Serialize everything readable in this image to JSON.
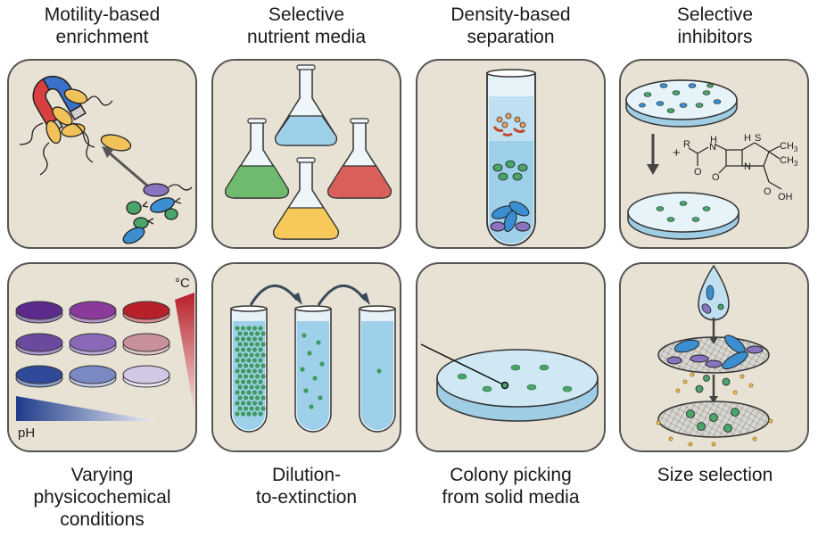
{
  "labels": {
    "motility": "Motility-based enrichment",
    "nutrient": "Selective nutrient media",
    "density": "Density-based separation",
    "inhibitors": "Selective inhibitors",
    "physico": "Varying physicochemical conditions",
    "dilution": "Dilution-to-extinction",
    "colony": "Colony picking from solid media",
    "size": "Size selection"
  },
  "label_lines": {
    "motility": [
      "Motility-based",
      "enrichment"
    ],
    "nutrient": [
      "Selective",
      "nutrient media"
    ],
    "density": [
      "Density-based",
      "separation"
    ],
    "inhibitors": [
      "Selective",
      "inhibitors"
    ],
    "physico": [
      "Varying",
      "physicochemical",
      "conditions"
    ],
    "dilution": [
      "Dilution-",
      "to-extinction"
    ],
    "colony": [
      "Colony picking",
      "from solid media"
    ],
    "size": [
      "Size selection"
    ]
  },
  "annotations": {
    "temperature": "°C",
    "ph": "pH",
    "plus": "+",
    "chem_r": "R",
    "chem_h1": "H",
    "chem_n1": "N",
    "chem_h2": "H",
    "chem_s": "S",
    "chem_ch3_a": "CH",
    "chem_ch3_b": "CH",
    "chem_sub3": "3",
    "chem_o1": "O",
    "chem_n2": "N",
    "chem_o2": "O",
    "chem_oh": "OH",
    "chem_o3": "O"
  },
  "colors": {
    "panel_bg": "#e8e2d5",
    "panel_border": "#555555",
    "cell_green": "#4aa56a",
    "cell_blue": "#3b8fd0",
    "cell_purple": "#7a5aa8",
    "cell_yellow": "#f2c25a",
    "media_blue": "#9fd0ea",
    "media_green": "#6fba6f",
    "media_yellow": "#f6c95a",
    "media_red": "#d9605a"
  }
}
